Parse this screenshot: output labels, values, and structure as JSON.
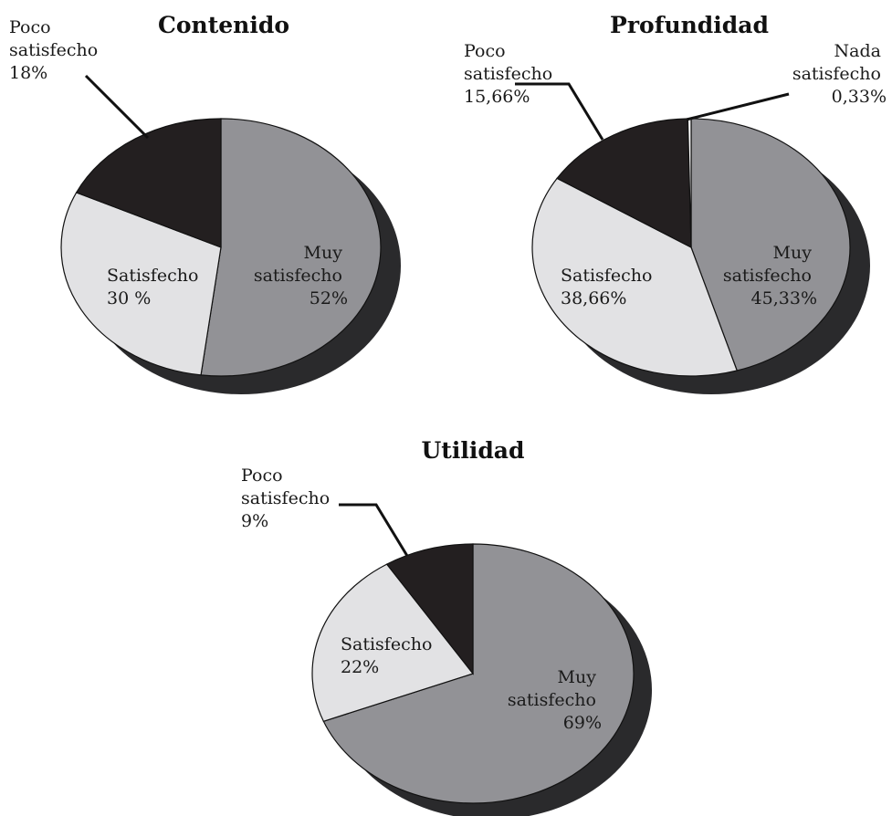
{
  "chart_data": [
    {
      "type": "pie",
      "title": "Contenido",
      "slices": [
        {
          "label_lines": [
            "Muy",
            "satisfecho",
            "52%"
          ],
          "value": 52,
          "color": "#929296"
        },
        {
          "label_lines": [
            "Satisfecho",
            "30 %"
          ],
          "value": 30,
          "color": "#e2e2e4"
        },
        {
          "label_lines": [
            "Poco",
            "satisfecho",
            "18%"
          ],
          "value": 18,
          "color": "#231f20"
        }
      ]
    },
    {
      "type": "pie",
      "title": "Profundidad",
      "slices": [
        {
          "label_lines": [
            "Muy",
            "satisfecho",
            "45,33%"
          ],
          "value": 45.33,
          "color": "#929296"
        },
        {
          "label_lines": [
            "Satisfecho",
            "38,66%"
          ],
          "value": 38.66,
          "color": "#e2e2e4"
        },
        {
          "label_lines": [
            "Poco",
            "satisfecho",
            "15,66%"
          ],
          "value": 15.66,
          "color": "#231f20"
        },
        {
          "label_lines": [
            "Nada",
            "satisfecho",
            "0,33%"
          ],
          "value": 0.33,
          "color": "#ffffff"
        }
      ]
    },
    {
      "type": "pie",
      "title": "Utilidad",
      "slices": [
        {
          "label_lines": [
            "Muy",
            "satisfecho",
            "69%"
          ],
          "value": 69,
          "color": "#929296"
        },
        {
          "label_lines": [
            "Satisfecho",
            "22%"
          ],
          "value": 22,
          "color": "#e2e2e4"
        },
        {
          "label_lines": [
            "Poco",
            "satisfecho",
            "9%"
          ],
          "value": 9,
          "color": "#231f20"
        }
      ]
    }
  ],
  "colors": {
    "shadow": "#2a2a2c",
    "outline": "#111111"
  }
}
